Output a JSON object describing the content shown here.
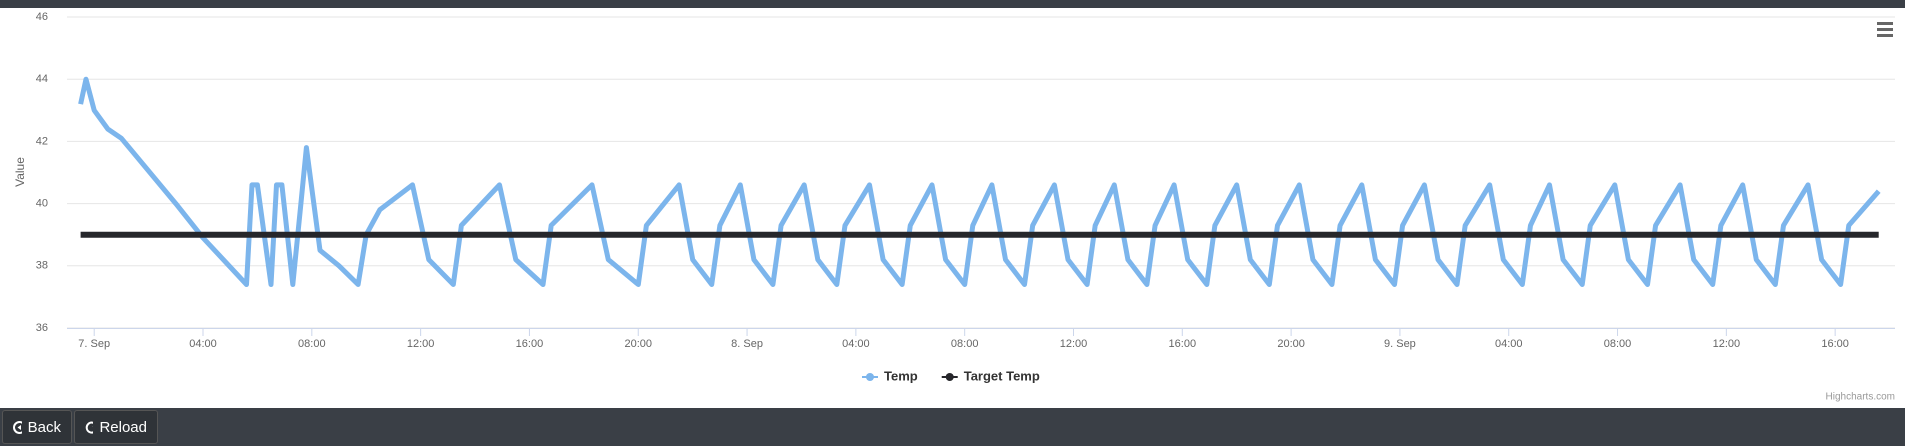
{
  "chart_data": {
    "type": "line",
    "y_axis_label": "Value",
    "xlim": [
      -1,
      66.2
    ],
    "xticks": [
      {
        "value": 0,
        "label": "7. Sep"
      },
      {
        "value": 4,
        "label": "04:00"
      },
      {
        "value": 8,
        "label": "08:00"
      },
      {
        "value": 12,
        "label": "12:00"
      },
      {
        "value": 16,
        "label": "16:00"
      },
      {
        "value": 20,
        "label": "20:00"
      },
      {
        "value": 24,
        "label": "8. Sep"
      },
      {
        "value": 28,
        "label": "04:00"
      },
      {
        "value": 32,
        "label": "08:00"
      },
      {
        "value": 36,
        "label": "12:00"
      },
      {
        "value": 40,
        "label": "16:00"
      },
      {
        "value": 44,
        "label": "20:00"
      },
      {
        "value": 48,
        "label": "9. Sep"
      },
      {
        "value": 52,
        "label": "04:00"
      },
      {
        "value": 56,
        "label": "08:00"
      },
      {
        "value": 60,
        "label": "12:00"
      },
      {
        "value": 64,
        "label": "16:00"
      }
    ],
    "ylim": [
      36,
      46
    ],
    "yticks": [
      36,
      38,
      40,
      42,
      44,
      46
    ],
    "grid": true,
    "legend": "bottom",
    "series": [
      {
        "name": "Temp",
        "color": "#7cb5ec",
        "x": [
          -0.5,
          -0.3,
          0,
          0.5,
          1,
          3,
          4,
          5.6,
          5.8,
          6,
          6.5,
          6.7,
          6.9,
          7.3,
          7.6,
          7.8,
          8.3,
          9,
          9.7,
          10,
          10.5,
          11.7,
          12.3,
          13.2,
          13.5,
          14.9,
          15.5,
          16.5,
          16.8,
          18.3,
          18.9,
          20,
          20.3,
          21.5,
          22.0,
          22.7,
          23.0,
          23.75,
          24.25,
          24.95,
          25.25,
          26.1,
          26.6,
          27.3,
          27.6,
          28.5,
          29.0,
          29.7,
          30.0,
          30.8,
          31.3,
          32.0,
          32.3,
          33.0,
          33.5,
          34.2,
          34.5,
          35.3,
          35.8,
          36.5,
          36.8,
          37.5,
          38.0,
          38.7,
          39.0,
          39.7,
          40.2,
          40.9,
          41.2,
          42.0,
          42.5,
          43.2,
          43.5,
          44.3,
          44.8,
          45.5,
          45.8,
          46.6,
          47.1,
          47.8,
          48.1,
          48.9,
          49.4,
          50.1,
          50.4,
          51.3,
          51.8,
          52.5,
          52.8,
          53.5,
          54.0,
          54.7,
          55.0,
          55.9,
          56.4,
          57.1,
          57.4,
          58.3,
          58.8,
          59.5,
          59.8,
          60.6,
          61.1,
          61.8,
          62.1,
          63.0,
          63.5,
          64.2,
          64.5,
          65.6
        ],
        "values": [
          43.2,
          44,
          43,
          42.4,
          42.1,
          40,
          38.9,
          37.4,
          40.6,
          40.6,
          37.4,
          40.6,
          40.6,
          37.4,
          40,
          41.8,
          38.5,
          38,
          37.4,
          39,
          39.8,
          40.6,
          38.2,
          37.4,
          39.3,
          40.6,
          38.2,
          37.4,
          39.3,
          40.6,
          38.2,
          37.4,
          39.3,
          40.6,
          38.2,
          37.4,
          39.3,
          40.6,
          38.2,
          37.4,
          39.3,
          40.6,
          38.2,
          37.4,
          39.3,
          40.6,
          38.2,
          37.4,
          39.3,
          40.6,
          38.2,
          37.4,
          39.3,
          40.6,
          38.2,
          37.4,
          39.3,
          40.6,
          38.2,
          37.4,
          39.3,
          40.6,
          38.2,
          37.4,
          39.3,
          40.6,
          38.2,
          37.4,
          39.3,
          40.6,
          38.2,
          37.4,
          39.3,
          40.6,
          38.2,
          37.4,
          39.3,
          40.6,
          38.2,
          37.4,
          39.3,
          40.6,
          38.2,
          37.4,
          39.3,
          40.6,
          38.2,
          37.4,
          39.3,
          40.6,
          38.2,
          37.4,
          39.3,
          40.6,
          38.2,
          37.4,
          39.3,
          40.6,
          38.2,
          37.4,
          39.3,
          40.6,
          38.2,
          37.4,
          39.3,
          40.6,
          38.2,
          37.4,
          39.3,
          40.4
        ]
      },
      {
        "name": "Target Temp",
        "color": "#26272b",
        "x": [
          -0.5,
          65.6
        ],
        "values": [
          39,
          39
        ]
      }
    ],
    "credits": "Highcharts.com"
  },
  "buttons": [
    "Back",
    "Reload"
  ]
}
